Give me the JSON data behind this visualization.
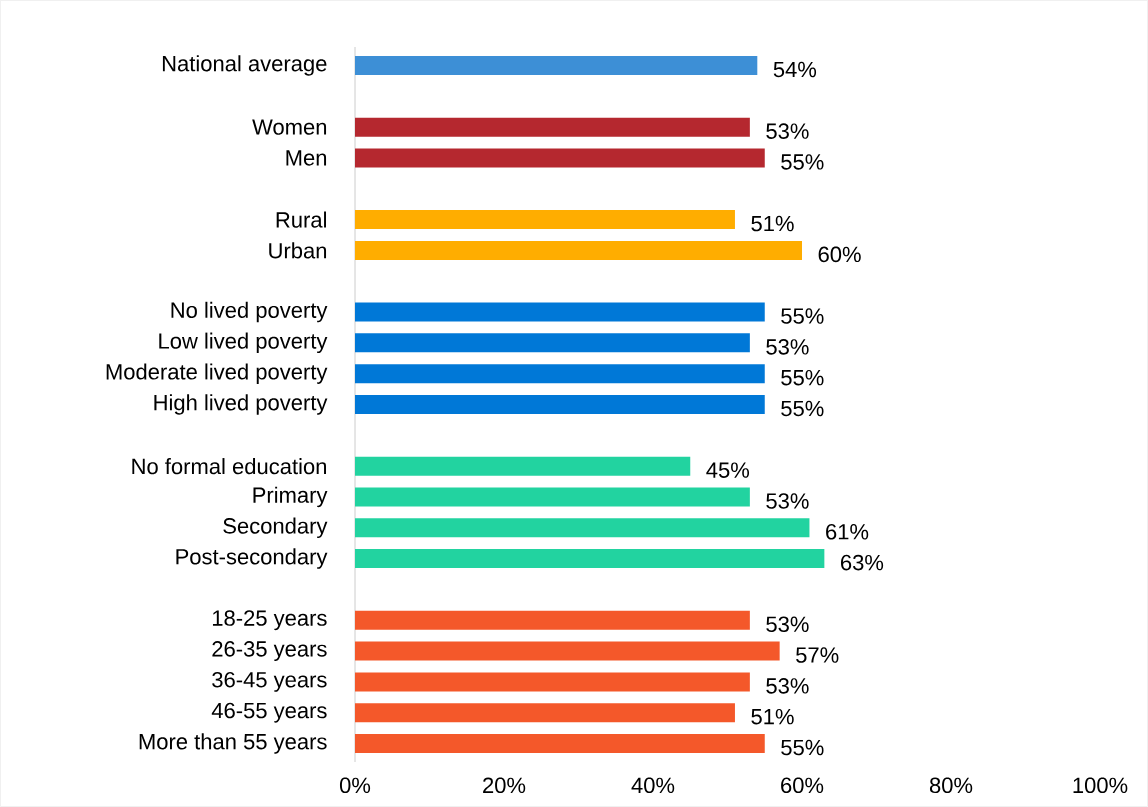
{
  "chart_data": {
    "type": "bar",
    "orientation": "horizontal",
    "categories": [
      "National average",
      null,
      "Women",
      "Men",
      null,
      "Rural",
      "Urban",
      null,
      "No lived poverty",
      "Low lived poverty",
      "Moderate lived poverty",
      "High lived poverty",
      null,
      "No formal education",
      "Primary",
      "Secondary",
      "Post-secondary",
      null,
      "18-25 years",
      "26-35 years",
      "36-45 years",
      "46-55 years",
      "More than 55 years"
    ],
    "values": [
      54,
      null,
      53,
      55,
      null,
      51,
      60,
      null,
      55,
      53,
      55,
      55,
      null,
      45,
      53,
      61,
      63,
      null,
      53,
      57,
      53,
      51,
      55
    ],
    "value_labels": [
      "54%",
      null,
      "53%",
      "55%",
      null,
      "51%",
      "60%",
      null,
      "55%",
      "53%",
      "55%",
      "55%",
      null,
      "45%",
      "53%",
      "61%",
      "63%",
      null,
      "53%",
      "57%",
      "53%",
      "51%",
      "55%"
    ],
    "colors": [
      "#3d8fd6",
      null,
      "#b5282f",
      "#b5282f",
      null,
      "#ffad00",
      "#ffad00",
      null,
      "#0078d7",
      "#0078d7",
      "#0078d7",
      "#0078d7",
      null,
      "#22d3a0",
      "#22d3a0",
      "#22d3a0",
      "#22d3a0",
      null,
      "#f4582a",
      "#f4582a",
      "#f4582a",
      "#f4582a",
      "#f4582a"
    ],
    "xlim": [
      0,
      100
    ],
    "xticks": [
      {
        "value": 0,
        "label": "0%"
      },
      {
        "value": 20,
        "label": "20%"
      },
      {
        "value": 40,
        "label": "40%"
      },
      {
        "value": 60,
        "label": "60%"
      },
      {
        "value": 80,
        "label": "80%"
      },
      {
        "value": 100,
        "label": "100%"
      }
    ],
    "grid": false
  }
}
